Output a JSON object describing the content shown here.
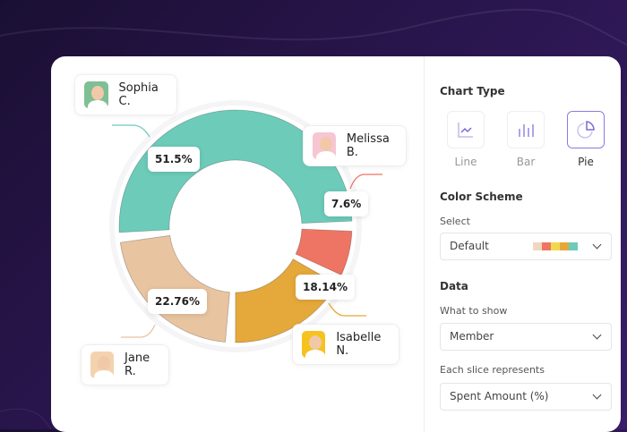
{
  "chart_data": {
    "type": "pie",
    "style": "donut",
    "slices": [
      {
        "label": "Sophia C.",
        "value": 51.5,
        "display": "51.5%",
        "color": "#6dcbb9"
      },
      {
        "label": "Melissa B.",
        "value": 7.6,
        "display": "7.6%",
        "color": "#ee7563"
      },
      {
        "label": "Isabelle N.",
        "value": 18.14,
        "display": "18.14%",
        "color": "#e5a83a"
      },
      {
        "label": "Jane R.",
        "value": 22.76,
        "display": "22.76%",
        "color": "#e8c4a0"
      }
    ]
  },
  "panel": {
    "chart_type_title": "Chart Type",
    "chart_types": [
      {
        "label": "Line",
        "icon": "line-chart-icon"
      },
      {
        "label": "Bar",
        "icon": "bar-chart-icon"
      },
      {
        "label": "Pie",
        "icon": "pie-chart-icon",
        "selected": true
      }
    ],
    "color_scheme_title": "Color Scheme",
    "select_label": "Select",
    "color_scheme_value": "Default",
    "scheme_colors": [
      "#f1d6c0",
      "#ee7563",
      "#f0d94e",
      "#e5a83a",
      "#6dcbb9"
    ],
    "data_title": "Data",
    "what_to_show_label": "What to show",
    "what_to_show_value": "Member",
    "slice_label": "Each slice represents",
    "slice_value": "Spent Amount (%)"
  },
  "accent": "#7b68d8"
}
